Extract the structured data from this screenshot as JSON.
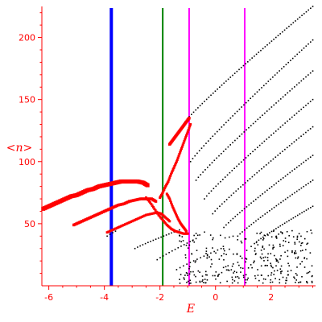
{
  "chart_data": {
    "type": "scatter",
    "title": "",
    "xlabel": "E",
    "ylabel": "<n>",
    "xlim": [
      -6.25,
      3.6
    ],
    "ylim": [
      0,
      225
    ],
    "x_ticks": [
      -6,
      -4,
      -2,
      0,
      2
    ],
    "y_ticks": [
      50,
      100,
      150,
      200
    ],
    "x_tick_labels": [
      "-6",
      "-4",
      "-2",
      "0",
      "2"
    ],
    "y_tick_labels": [
      "50",
      "100",
      "150",
      "200"
    ],
    "grid": false,
    "legend": "none",
    "colors": {
      "axis": "#ff0000",
      "points_red": "#ff0000",
      "points_black": "#000000",
      "line_blue": "#0000ff",
      "line_green": "#008000",
      "line_magenta": "#ff00ff"
    },
    "vertical_lines": [
      {
        "x": -3.75,
        "color": "#0000ff",
        "width": 4
      },
      {
        "x": -1.9,
        "color": "#008000",
        "width": 2
      },
      {
        "x": -0.95,
        "color": "#ff00ff",
        "width": 2
      },
      {
        "x": 1.05,
        "color": "#ff00ff",
        "width": 2
      }
    ],
    "red_branches": [
      {
        "name": "",
        "size": 5,
        "points": [
          [
            -6.2,
            62
          ],
          [
            -6.0,
            64
          ],
          [
            -5.8,
            66
          ],
          [
            -5.6,
            68
          ],
          [
            -5.4,
            70
          ],
          [
            -5.2,
            72
          ],
          [
            -5.0,
            73
          ],
          [
            -4.8,
            75
          ],
          [
            -4.6,
            77
          ],
          [
            -4.4,
            78
          ],
          [
            -4.2,
            80
          ],
          [
            -4.0,
            81
          ],
          [
            -3.8,
            82
          ],
          [
            -3.6,
            83
          ],
          [
            -3.4,
            84
          ],
          [
            -3.2,
            84
          ],
          [
            -3.0,
            84
          ],
          [
            -2.8,
            84
          ],
          [
            -2.6,
            83
          ],
          [
            -2.45,
            81
          ]
        ]
      },
      {
        "name": "",
        "size": 3.5,
        "points": [
          [
            -5.1,
            49
          ],
          [
            -4.9,
            51
          ],
          [
            -4.7,
            53
          ],
          [
            -4.5,
            55
          ],
          [
            -4.3,
            57
          ],
          [
            -4.1,
            59
          ],
          [
            -3.9,
            61
          ],
          [
            -3.7,
            63
          ],
          [
            -3.5,
            65
          ],
          [
            -3.3,
            66
          ],
          [
            -3.1,
            68
          ],
          [
            -2.9,
            69
          ],
          [
            -2.7,
            70
          ],
          [
            -2.5,
            70
          ],
          [
            -2.3,
            70
          ],
          [
            -2.15,
            68
          ]
        ]
      },
      {
        "name": "",
        "size": 3,
        "points": [
          [
            -3.9,
            43
          ],
          [
            -3.7,
            45
          ],
          [
            -3.5,
            47
          ],
          [
            -3.3,
            49
          ],
          [
            -3.1,
            51
          ],
          [
            -2.9,
            53
          ],
          [
            -2.7,
            55
          ],
          [
            -2.5,
            57
          ],
          [
            -2.3,
            58
          ],
          [
            -2.1,
            59
          ],
          [
            -1.95,
            58
          ],
          [
            -1.8,
            55
          ],
          [
            -1.65,
            52
          ]
        ]
      },
      {
        "name": "",
        "size": 3,
        "points": [
          [
            -2.0,
            71
          ],
          [
            -1.9,
            75
          ],
          [
            -1.8,
            80
          ],
          [
            -1.7,
            84
          ],
          [
            -1.6,
            90
          ],
          [
            -1.5,
            95
          ],
          [
            -1.4,
            100
          ],
          [
            -1.3,
            106
          ],
          [
            -1.2,
            112
          ],
          [
            -1.1,
            118
          ],
          [
            -1.0,
            124
          ],
          [
            -0.9,
            130
          ]
        ]
      },
      {
        "name": "",
        "size": 3.5,
        "points": [
          [
            -1.65,
            114
          ],
          [
            -1.55,
            117
          ],
          [
            -1.45,
            120
          ],
          [
            -1.35,
            123
          ],
          [
            -1.25,
            126
          ],
          [
            -1.15,
            129
          ],
          [
            -1.05,
            132
          ],
          [
            -0.95,
            135
          ]
        ]
      },
      {
        "name": "",
        "size": 3,
        "points": [
          [
            -2.5,
            71
          ],
          [
            -2.35,
            67
          ],
          [
            -2.2,
            62
          ],
          [
            -2.05,
            57
          ],
          [
            -1.9,
            53
          ],
          [
            -1.75,
            49
          ],
          [
            -1.6,
            46
          ],
          [
            -1.45,
            44
          ],
          [
            -1.3,
            43
          ],
          [
            -1.15,
            42
          ],
          [
            -1.0,
            42
          ]
        ]
      },
      {
        "name": "",
        "size": 3,
        "points": [
          [
            -1.75,
            74
          ],
          [
            -1.65,
            70
          ],
          [
            -1.55,
            64
          ],
          [
            -1.45,
            59
          ],
          [
            -1.35,
            54
          ],
          [
            -1.25,
            50
          ],
          [
            -1.15,
            47
          ],
          [
            -1.05,
            44
          ]
        ]
      }
    ],
    "black_branches": [
      {
        "name": "",
        "start": [
          -1.1,
          132
        ],
        "end": [
          3.5,
          225
        ],
        "count": 60
      },
      {
        "name": "",
        "start": [
          -0.9,
          100
        ],
        "end": [
          3.5,
          198
        ],
        "count": 56
      },
      {
        "name": "",
        "start": [
          -0.7,
          85
        ],
        "end": [
          3.5,
          173
        ],
        "count": 52
      },
      {
        "name": "",
        "start": [
          -0.4,
          70
        ],
        "end": [
          3.5,
          150
        ],
        "count": 48
      },
      {
        "name": "",
        "start": [
          -0.1,
          58
        ],
        "end": [
          3.5,
          128
        ],
        "count": 44
      },
      {
        "name": "",
        "start": [
          0.3,
          47
        ],
        "end": [
          3.5,
          105
        ],
        "count": 40
      },
      {
        "name": "",
        "start": [
          0.8,
          40
        ],
        "end": [
          3.5,
          85
        ],
        "count": 34
      },
      {
        "name": "",
        "start": [
          1.4,
          34
        ],
        "end": [
          3.5,
          64
        ],
        "count": 28
      },
      {
        "name": "",
        "start": [
          -3.9,
          40
        ],
        "end": [
          -3.6,
          44
        ],
        "count": 4
      },
      {
        "name": "",
        "start": [
          -2.9,
          30
        ],
        "end": [
          -1.3,
          45
        ],
        "count": 18
      },
      {
        "name": "",
        "start": [
          -2.1,
          21
        ],
        "end": [
          -0.7,
          38
        ],
        "count": 14
      },
      {
        "name": "",
        "start": [
          -1.4,
          13
        ],
        "end": [
          0.2,
          30
        ],
        "count": 14
      }
    ],
    "black_scatter": {
      "xmin": -1.3,
      "xmax": 3.5,
      "ymin": 2,
      "ymax": 45,
      "count": 320,
      "seed": 7
    }
  }
}
